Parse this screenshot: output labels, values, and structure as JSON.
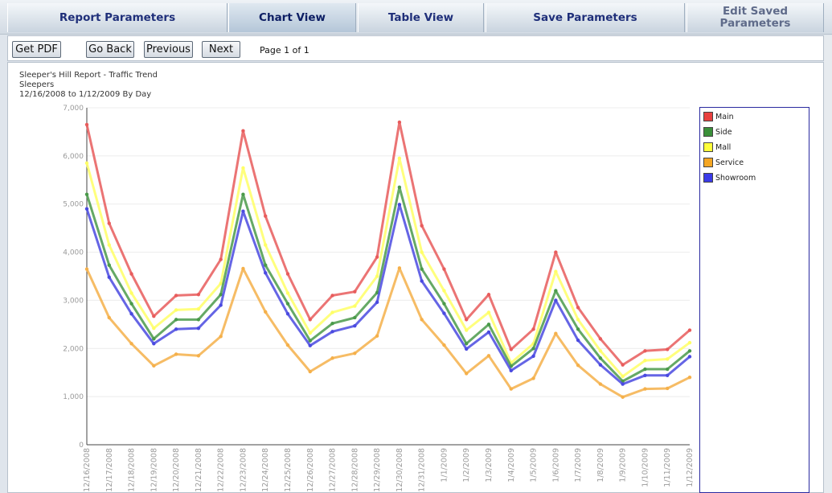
{
  "tabs": [
    {
      "label": "Report Parameters"
    },
    {
      "label": "Chart View"
    },
    {
      "label": "Table View"
    },
    {
      "label": "Save Parameters"
    },
    {
      "label": "Edit Saved Parameters"
    }
  ],
  "toolbar": {
    "get_pdf": "Get PDF",
    "go_back": "Go Back",
    "previous": "Previous",
    "next": "Next",
    "page_info": "Page 1 of 1"
  },
  "report": {
    "title": "Sleeper's Hill Report - Traffic Trend",
    "subtitle": "Sleepers",
    "date_range": "12/16/2008 to 1/12/2009 By Day"
  },
  "chart_data": {
    "type": "line",
    "title": "Sleeper's Hill Report - Traffic Trend",
    "subtitle": "Sleepers",
    "ylim": [
      0,
      7000
    ],
    "yticks": [
      "0",
      "1,000",
      "2,000",
      "3,000",
      "4,000",
      "5,000",
      "6,000",
      "7,000"
    ],
    "grid": true,
    "legend_position": "right",
    "categories": [
      "12/16/2008",
      "12/17/2008",
      "12/18/2008",
      "12/19/2008",
      "12/20/2008",
      "12/21/2008",
      "12/22/2008",
      "12/23/2008",
      "12/24/2008",
      "12/25/2008",
      "12/26/2008",
      "12/27/2008",
      "12/28/2008",
      "12/29/2008",
      "12/30/2008",
      "12/31/2008",
      "1/1/2009",
      "1/2/2009",
      "1/3/2009",
      "1/4/2009",
      "1/5/2009",
      "1/6/2009",
      "1/7/2009",
      "1/8/2009",
      "1/9/2009",
      "1/10/2009",
      "1/11/2009",
      "1/12/2009"
    ],
    "series": [
      {
        "name": "Main",
        "color": "#e85c5c",
        "values": [
          6650,
          4600,
          3550,
          2670,
          3100,
          3120,
          3850,
          6520,
          4750,
          3550,
          2600,
          3100,
          3180,
          3900,
          6700,
          4550,
          3650,
          2600,
          3120,
          1980,
          2400,
          4000,
          2850,
          2200,
          1660,
          1950,
          1980,
          2380
        ]
      },
      {
        "name": "Mall",
        "color": "#ffff66",
        "values": [
          5850,
          4150,
          3150,
          2420,
          2800,
          2820,
          3350,
          5750,
          4150,
          3150,
          2320,
          2750,
          2880,
          3500,
          5950,
          4000,
          3200,
          2380,
          2750,
          1700,
          2100,
          3600,
          2600,
          1950,
          1420,
          1750,
          1780,
          2120
        ]
      },
      {
        "name": "Side",
        "color": "#4a9a4a",
        "values": [
          5200,
          3730,
          2930,
          2200,
          2600,
          2600,
          3120,
          5200,
          3730,
          2930,
          2160,
          2520,
          2640,
          3160,
          5350,
          3650,
          2930,
          2100,
          2500,
          1630,
          2000,
          3200,
          2400,
          1800,
          1320,
          1570,
          1570,
          1950
        ]
      },
      {
        "name": "Showroom",
        "color": "#4a4ae0",
        "values": [
          4900,
          3480,
          2720,
          2100,
          2400,
          2420,
          2900,
          4850,
          3570,
          2720,
          2060,
          2350,
          2470,
          2960,
          4990,
          3400,
          2730,
          1990,
          2340,
          1540,
          1840,
          3000,
          2170,
          1660,
          1260,
          1440,
          1440,
          1830
        ]
      },
      {
        "name": "Service",
        "color": "#f5b04a",
        "values": [
          3650,
          2640,
          2100,
          1640,
          1880,
          1850,
          2250,
          3660,
          2760,
          2070,
          1520,
          1800,
          1900,
          2260,
          3670,
          2600,
          2070,
          1480,
          1850,
          1160,
          1380,
          2310,
          1650,
          1260,
          990,
          1160,
          1170,
          1400
        ]
      }
    ]
  },
  "legend": [
    {
      "name": "Main",
      "color": "#e8403f"
    },
    {
      "name": "Side",
      "color": "#3a8f3a"
    },
    {
      "name": "Mall",
      "color": "#ffff3a"
    },
    {
      "name": "Service",
      "color": "#f5a623"
    },
    {
      "name": "Showroom",
      "color": "#3a3ae8"
    }
  ]
}
